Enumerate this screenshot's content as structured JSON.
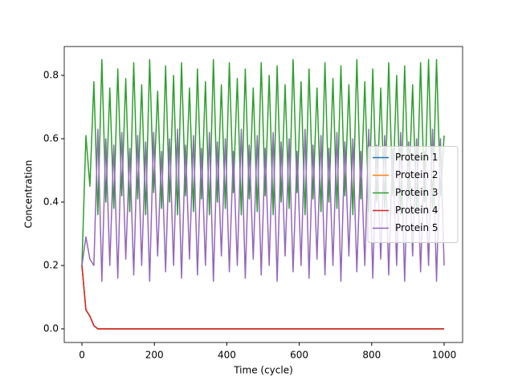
{
  "chart_data": {
    "type": "line",
    "xlabel": "Time (cycle)",
    "ylabel": "Concentration",
    "x": [
      0,
      11,
      22,
      33,
      44,
      55,
      66,
      77,
      88,
      99,
      110,
      121,
      132,
      143,
      154,
      165,
      176,
      187,
      198,
      209,
      220,
      231,
      242,
      253,
      264,
      275,
      286,
      297,
      308,
      319,
      330,
      341,
      352,
      363,
      374,
      385,
      396,
      407,
      418,
      429,
      440,
      451,
      462,
      473,
      484,
      495,
      506,
      517,
      528,
      539,
      550,
      561,
      572,
      583,
      594,
      605,
      616,
      627,
      638,
      649,
      660,
      671,
      682,
      693,
      704,
      715,
      726,
      737,
      748,
      759,
      770,
      781,
      792,
      803,
      814,
      825,
      836,
      847,
      858,
      869,
      880,
      891,
      902,
      913,
      924,
      935,
      946,
      957,
      968,
      979,
      990,
      1000
    ],
    "series": [
      {
        "name": "Protein 1",
        "color": "#1f77b4",
        "values": [
          0.2,
          0.06,
          0.04,
          0.01,
          0,
          0,
          0,
          0,
          0,
          0,
          0,
          0,
          0,
          0,
          0,
          0,
          0,
          0,
          0,
          0,
          0,
          0,
          0,
          0,
          0,
          0,
          0,
          0,
          0,
          0,
          0,
          0,
          0,
          0,
          0,
          0,
          0,
          0,
          0,
          0,
          0,
          0,
          0,
          0,
          0,
          0,
          0,
          0,
          0,
          0,
          0,
          0,
          0,
          0,
          0,
          0,
          0,
          0,
          0,
          0,
          0,
          0,
          0,
          0,
          0,
          0,
          0,
          0,
          0,
          0,
          0,
          0,
          0,
          0,
          0,
          0,
          0,
          0,
          0,
          0,
          0,
          0,
          0,
          0,
          0,
          0,
          0,
          0,
          0,
          0,
          0,
          0
        ]
      },
      {
        "name": "Protein 2",
        "color": "#ff7f0e",
        "values": [
          0.2,
          0.06,
          0.04,
          0.01,
          0,
          0,
          0,
          0,
          0,
          0,
          0,
          0,
          0,
          0,
          0,
          0,
          0,
          0,
          0,
          0,
          0,
          0,
          0,
          0,
          0,
          0,
          0,
          0,
          0,
          0,
          0,
          0,
          0,
          0,
          0,
          0,
          0,
          0,
          0,
          0,
          0,
          0,
          0,
          0,
          0,
          0,
          0,
          0,
          0,
          0,
          0,
          0,
          0,
          0,
          0,
          0,
          0,
          0,
          0,
          0,
          0,
          0,
          0,
          0,
          0,
          0,
          0,
          0,
          0,
          0,
          0,
          0,
          0,
          0,
          0,
          0,
          0,
          0,
          0,
          0,
          0,
          0,
          0,
          0,
          0,
          0,
          0,
          0,
          0,
          0,
          0,
          0
        ]
      },
      {
        "name": "Protein 3",
        "color": "#2ca02c",
        "values": [
          0.2,
          0.61,
          0.45,
          0.78,
          0.36,
          0.85,
          0.4,
          0.76,
          0.38,
          0.82,
          0.42,
          0.79,
          0.37,
          0.84,
          0.41,
          0.77,
          0.36,
          0.85,
          0.43,
          0.75,
          0.38,
          0.83,
          0.4,
          0.8,
          0.36,
          0.84,
          0.42,
          0.76,
          0.37,
          0.82,
          0.41,
          0.78,
          0.36,
          0.85,
          0.4,
          0.77,
          0.38,
          0.84,
          0.43,
          0.79,
          0.36,
          0.82,
          0.41,
          0.76,
          0.37,
          0.84,
          0.42,
          0.8,
          0.36,
          0.83,
          0.4,
          0.77,
          0.38,
          0.85,
          0.43,
          0.78,
          0.36,
          0.82,
          0.41,
          0.76,
          0.37,
          0.84,
          0.4,
          0.79,
          0.38,
          0.83,
          0.42,
          0.77,
          0.36,
          0.85,
          0.41,
          0.78,
          0.37,
          0.82,
          0.4,
          0.76,
          0.38,
          0.84,
          0.42,
          0.8,
          0.36,
          0.83,
          0.41,
          0.77,
          0.37,
          0.84,
          0.4,
          0.85,
          0.38,
          0.85,
          0.42,
          0.61
        ]
      },
      {
        "name": "Protein 4",
        "color": "#d62728",
        "values": [
          0.2,
          0.06,
          0.04,
          0.01,
          0,
          0,
          0,
          0,
          0,
          0,
          0,
          0,
          0,
          0,
          0,
          0,
          0,
          0,
          0,
          0,
          0,
          0,
          0,
          0,
          0,
          0,
          0,
          0,
          0,
          0,
          0,
          0,
          0,
          0,
          0,
          0,
          0,
          0,
          0,
          0,
          0,
          0,
          0,
          0,
          0,
          0,
          0,
          0,
          0,
          0,
          0,
          0,
          0,
          0,
          0,
          0,
          0,
          0,
          0,
          0,
          0,
          0,
          0,
          0,
          0,
          0,
          0,
          0,
          0,
          0,
          0,
          0,
          0,
          0,
          0,
          0,
          0,
          0,
          0,
          0,
          0,
          0,
          0,
          0,
          0,
          0,
          0,
          0,
          0,
          0,
          0,
          0
        ]
      },
      {
        "name": "Protein 5",
        "color": "#9467bd",
        "values": [
          0.2,
          0.29,
          0.22,
          0.2,
          0.63,
          0.15,
          0.6,
          0.2,
          0.58,
          0.16,
          0.62,
          0.22,
          0.57,
          0.17,
          0.61,
          0.2,
          0.59,
          0.15,
          0.62,
          0.23,
          0.56,
          0.18,
          0.6,
          0.2,
          0.63,
          0.16,
          0.58,
          0.22,
          0.61,
          0.17,
          0.57,
          0.2,
          0.62,
          0.15,
          0.59,
          0.23,
          0.6,
          0.18,
          0.56,
          0.2,
          0.63,
          0.16,
          0.58,
          0.22,
          0.61,
          0.17,
          0.57,
          0.2,
          0.62,
          0.15,
          0.59,
          0.23,
          0.6,
          0.18,
          0.56,
          0.2,
          0.63,
          0.16,
          0.58,
          0.22,
          0.61,
          0.17,
          0.57,
          0.2,
          0.62,
          0.15,
          0.59,
          0.23,
          0.6,
          0.18,
          0.56,
          0.2,
          0.63,
          0.16,
          0.58,
          0.22,
          0.61,
          0.17,
          0.57,
          0.2,
          0.62,
          0.15,
          0.59,
          0.23,
          0.6,
          0.18,
          0.56,
          0.2,
          0.63,
          0.15,
          0.6,
          0.2
        ]
      }
    ],
    "xlim": [
      -48.8,
      1051
    ],
    "ylim": [
      -0.043,
      0.891
    ],
    "xticks": [
      0,
      200,
      400,
      600,
      800,
      1000
    ],
    "yticks": [
      {
        "value": 0,
        "label": "0.0"
      },
      0.2,
      0.4,
      0.6,
      0.8
    ],
    "legend": "center right"
  }
}
